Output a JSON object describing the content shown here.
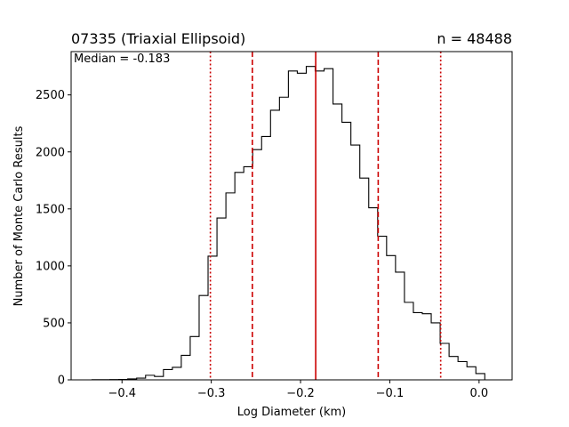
{
  "chart_data": {
    "type": "histogram",
    "title_left": "07335 (Triaxial Ellipsoid)",
    "title_right": "n = 48488",
    "annotation": "Median = -0.183",
    "xlabel": "Log Diameter (km)",
    "ylabel": "Number of Monte Carlo Results",
    "xlim": [
      -0.457,
      0.037
    ],
    "ylim": [
      0,
      2880
    ],
    "xticks": [
      -0.4,
      -0.3,
      -0.2,
      -0.1,
      0.0
    ],
    "xtick_labels": [
      "−0.4",
      "−0.3",
      "−0.2",
      "−0.1",
      "0.0"
    ],
    "yticks": [
      0,
      500,
      1000,
      1500,
      2000,
      2500
    ],
    "ytick_labels": [
      "0",
      "500",
      "1000",
      "1500",
      "2000",
      "2500"
    ],
    "grid": false,
    "bins": {
      "edges": [
        -0.4336,
        -0.4236,
        -0.4136,
        -0.4036,
        -0.3936,
        -0.3836,
        -0.3736,
        -0.3636,
        -0.3536,
        -0.3436,
        -0.3336,
        -0.3236,
        -0.3136,
        -0.3036,
        -0.2936,
        -0.2836,
        -0.2736,
        -0.2636,
        -0.2536,
        -0.2436,
        -0.2336,
        -0.2236,
        -0.2136,
        -0.2036,
        -0.1936,
        -0.1836,
        -0.1736,
        -0.1636,
        -0.1536,
        -0.1436,
        -0.1336,
        -0.1236,
        -0.1136,
        -0.1036,
        -0.0936,
        -0.0836,
        -0.0736,
        -0.0636,
        -0.0536,
        -0.0436,
        -0.0336,
        -0.0236,
        -0.0136,
        -0.0036,
        0.0064,
        0.0154
      ],
      "counts": [
        2,
        2,
        3,
        4,
        8,
        15,
        40,
        30,
        90,
        110,
        215,
        380,
        740,
        1085,
        1420,
        1640,
        1820,
        1870,
        2020,
        2135,
        2365,
        2480,
        2710,
        2690,
        2750,
        2710,
        2730,
        2420,
        2260,
        2060,
        1770,
        1510,
        1260,
        1090,
        945,
        680,
        590,
        580,
        500,
        320,
        205,
        160,
        115,
        55,
        0
      ]
    },
    "color": "#000000",
    "vlines": [
      {
        "x": -0.183,
        "style": "solid",
        "color": "#cc0000"
      },
      {
        "x": -0.254,
        "style": "dashed",
        "color": "#cc0000"
      },
      {
        "x": -0.113,
        "style": "dashed",
        "color": "#cc0000"
      },
      {
        "x": -0.301,
        "style": "dotted",
        "color": "#cc0000"
      },
      {
        "x": -0.043,
        "style": "dotted",
        "color": "#cc0000"
      }
    ]
  }
}
